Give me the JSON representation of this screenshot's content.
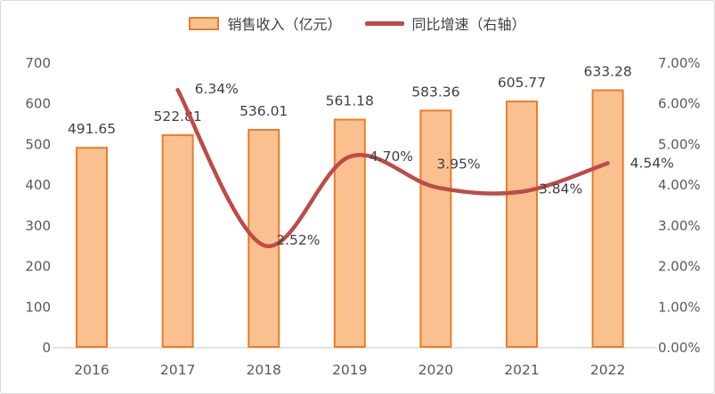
{
  "legend": [
    {
      "label": "销售收入（亿元）",
      "swatch": "bar"
    },
    {
      "label": "同比增速（右轴）",
      "swatch": "line"
    }
  ],
  "chart_data": {
    "type": "combo",
    "categories": [
      "2016",
      "2017",
      "2018",
      "2019",
      "2020",
      "2021",
      "2022"
    ],
    "series": [
      {
        "name": "销售收入（亿元）",
        "type": "bar",
        "axis": "left",
        "values": [
          491.65,
          522.81,
          536.01,
          561.18,
          583.36,
          605.77,
          633.28
        ],
        "labels": [
          "491.65",
          "522.81",
          "536.01",
          "561.18",
          "583.36",
          "605.77",
          "633.28"
        ]
      },
      {
        "name": "同比增速（右轴）",
        "type": "line",
        "axis": "right",
        "values": [
          null,
          6.34,
          2.52,
          4.7,
          3.95,
          3.84,
          4.54
        ],
        "labels": [
          null,
          "6.34%",
          "2.52%",
          "4.70%",
          "3.95%",
          "3.84%",
          "4.54%"
        ]
      }
    ],
    "left_axis": {
      "min": 0,
      "max": 700,
      "step": 100,
      "ticks": [
        "0",
        "100",
        "200",
        "300",
        "400",
        "500",
        "600",
        "700"
      ]
    },
    "right_axis": {
      "min": 0,
      "max": 7,
      "step": 1,
      "ticks": [
        "0.00%",
        "1.00%",
        "2.00%",
        "3.00%",
        "4.00%",
        "5.00%",
        "6.00%",
        "7.00%"
      ]
    },
    "grid": false,
    "legend_position": "top",
    "line_smooth": true
  },
  "colors": {
    "bar_fill": "#FAC090",
    "bar_border": "#E97D28",
    "line": "#BE4B48",
    "axis_text": "#595959",
    "label_text": "#404040",
    "axis_line": "#D9D9D9",
    "chart_border": "#D9D9D9",
    "background": "#FFFFFF"
  }
}
